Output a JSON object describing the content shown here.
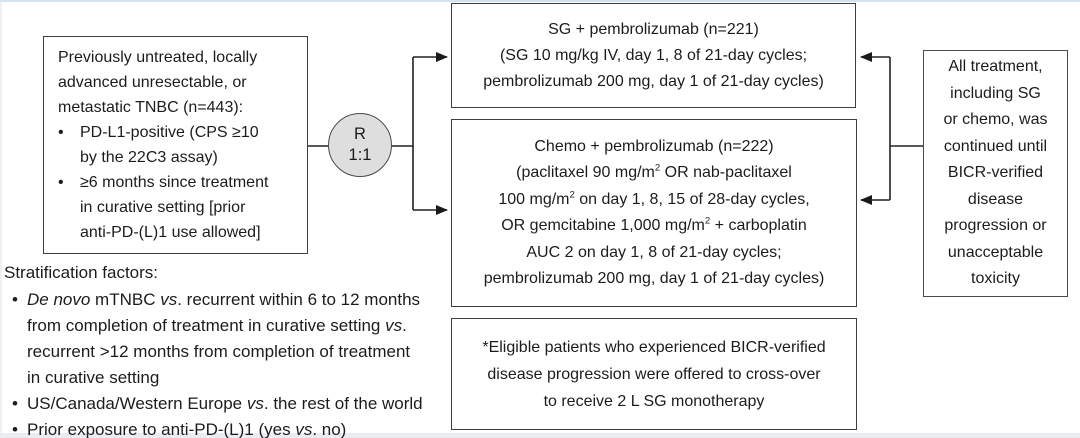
{
  "figure": {
    "bullet_char": "•",
    "eligibility_box": {
      "intro_lines": [
        [
          {
            "t": "Previously untreated, locally"
          }
        ],
        [
          {
            "t": "advanced unresectable, or"
          }
        ],
        [
          {
            "t": "metastatic TNBC (n=443):"
          }
        ]
      ],
      "bullets": [
        {
          "lines": [
            [
              {
                "t": "PD-L1-positive (CPS ≥10"
              }
            ],
            [
              {
                "t": "by the 22C3 assay)"
              }
            ]
          ]
        },
        {
          "lines": [
            [
              {
                "t": "≥6 months since treatment"
              }
            ],
            [
              {
                "t": "in curative setting [prior"
              }
            ],
            [
              {
                "t": "anti-PD-(L)1 use allowed]"
              }
            ]
          ]
        }
      ]
    },
    "randomizer": {
      "label": "R",
      "ratio": "1:1"
    },
    "sg_arm_box": {
      "lines": [
        [
          {
            "t": "SG + pembrolizumab (n=221)"
          }
        ],
        [
          {
            "t": "(SG 10 mg/kg IV, day 1, 8 of 21-day cycles;"
          }
        ],
        [
          {
            "t": "pembrolizumab 200 mg, day 1 of 21-day cycles)"
          }
        ]
      ]
    },
    "chemo_arm_box": {
      "lines": [
        [
          {
            "t": "Chemo + pembrolizumab (n=222)"
          }
        ],
        [
          {
            "t": "(paclitaxel 90 mg/m"
          },
          {
            "t": "2",
            "s": true
          },
          {
            "t": " OR nab-paclitaxel"
          }
        ],
        [
          {
            "t": "100 mg/m"
          },
          {
            "t": "2",
            "s": true
          },
          {
            "t": " on day 1, 8, 15 of 28-day cycles,"
          }
        ],
        [
          {
            "t": "OR gemcitabine 1,000 mg/m"
          },
          {
            "t": "2",
            "s": true
          },
          {
            "t": " + carboplatin"
          }
        ],
        [
          {
            "t": "AUC 2 on day 1, 8 of 21-day cycles;"
          }
        ],
        [
          {
            "t": "pembrolizumab 200 mg, day 1 of 21-day cycles)"
          }
        ]
      ]
    },
    "treatment_note_box": {
      "lines": [
        [
          {
            "t": "All treatment,"
          }
        ],
        [
          {
            "t": "including SG"
          }
        ],
        [
          {
            "t": "or chemo, was"
          }
        ],
        [
          {
            "t": "continued until"
          }
        ],
        [
          {
            "t": "BICR-verified"
          }
        ],
        [
          {
            "t": "disease"
          }
        ],
        [
          {
            "t": "progression or"
          }
        ],
        [
          {
            "t": "unacceptable"
          }
        ],
        [
          {
            "t": "toxicity"
          }
        ]
      ]
    },
    "crossover_note_box": {
      "lines": [
        [
          {
            "t": "*Eligible patients who experienced BICR-verified"
          }
        ],
        [
          {
            "t": "disease progression were offered to cross-over"
          }
        ],
        [
          {
            "t": "to receive 2 L SG monotherapy"
          }
        ]
      ]
    },
    "stratification": {
      "title": "Stratification factors:",
      "bullets": [
        {
          "lines": [
            [
              {
                "t": "De novo",
                "i": true
              },
              {
                "t": " mTNBC "
              },
              {
                "t": "vs",
                "i": true
              },
              {
                "t": ". recurrent within 6 to 12 months"
              }
            ],
            [
              {
                "t": "from completion of treatment in curative setting "
              },
              {
                "t": "vs",
                "i": true
              },
              {
                "t": "."
              }
            ],
            [
              {
                "t": "recurrent >12 months from completion of treatment"
              }
            ],
            [
              {
                "t": "in curative setting"
              }
            ]
          ]
        },
        {
          "lines": [
            [
              {
                "t": "US/Canada/Western Europe "
              },
              {
                "t": "vs",
                "i": true
              },
              {
                "t": ". the rest of the world"
              }
            ]
          ]
        },
        {
          "lines": [
            [
              {
                "t": "Prior exposure to anti-PD-(L)1 (yes "
              },
              {
                "t": "vs",
                "i": true
              },
              {
                "t": ". no)"
              }
            ]
          ]
        }
      ]
    },
    "colors": {
      "box_border": "#3f3f3f",
      "text": "#1c1c1c",
      "connector_line": "#222222",
      "randomizer_fill": "#dedede",
      "top_edge": "#d4e2f4",
      "bottom_edge": "#eaecf0"
    }
  }
}
